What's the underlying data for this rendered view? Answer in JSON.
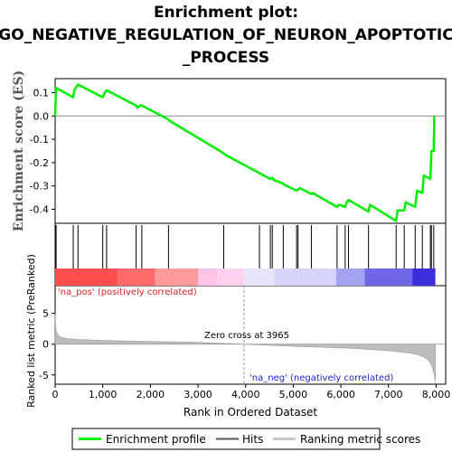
{
  "chart_data": {
    "type": "line",
    "title_lines": [
      "Enrichment plot:",
      "GO_NEGATIVE_REGULATION_OF_NEURON_APOPTOTIC",
      "_PROCESS"
    ],
    "es_panel": {
      "ylabel": "Enrichment score (ES)",
      "ylim": [
        -0.46,
        0.16
      ],
      "yticks": [
        0.1,
        0.0,
        -0.1,
        -0.2,
        -0.3,
        -0.4
      ],
      "ytick_labels": [
        "0.1",
        "0.0",
        "-0.1",
        "-0.2",
        "-0.3",
        "-0.4"
      ],
      "line_color": "#00ee00",
      "series": [
        {
          "name": "Enrichment profile",
          "x": [
            0,
            20,
            380,
            400,
            480,
            1000,
            1040,
            1080,
            1700,
            1730,
            1780,
            1820,
            2380,
            2400,
            3540,
            3560,
            4520,
            4560,
            4600,
            4790,
            4810,
            5070,
            5100,
            5150,
            5380,
            5410,
            5920,
            5960,
            6090,
            6120,
            6160,
            6580,
            6610,
            7160,
            7190,
            7330,
            7360,
            7560,
            7600,
            7710,
            7740,
            7880,
            7900,
            7950,
            7960
          ],
          "y": [
            0.0,
            0.12,
            0.08,
            0.11,
            0.135,
            0.08,
            0.1,
            0.11,
            0.045,
            0.035,
            0.045,
            0.045,
            -0.015,
            -0.02,
            -0.16,
            -0.165,
            -0.27,
            -0.265,
            -0.275,
            -0.29,
            -0.295,
            -0.32,
            -0.315,
            -0.31,
            -0.335,
            -0.33,
            -0.39,
            -0.38,
            -0.39,
            -0.37,
            -0.36,
            -0.41,
            -0.38,
            -0.45,
            -0.405,
            -0.405,
            -0.37,
            -0.39,
            -0.32,
            -0.33,
            -0.255,
            -0.27,
            -0.15,
            -0.15,
            0.0
          ]
        }
      ]
    },
    "hits": [
      20,
      380,
      480,
      1000,
      1080,
      1700,
      1820,
      2380,
      3540,
      4290,
      4520,
      4560,
      4790,
      5070,
      5100,
      5380,
      5920,
      6090,
      6160,
      6580,
      7160,
      7330,
      7560,
      7710,
      7880,
      7900,
      7950
    ],
    "rank_panel": {
      "ylabel": "Ranked list metric (PreRanked)",
      "ylim": [
        -6.5,
        9.5
      ],
      "yticks": [
        5,
        0,
        -5
      ],
      "ytick_labels": [
        "5",
        "0",
        "-5"
      ],
      "metric_profile": {
        "x": [
          0,
          5,
          20,
          60,
          120,
          250,
          500,
          1000,
          2000,
          3000,
          3965,
          5000,
          6000,
          6500,
          7000,
          7300,
          7500,
          7650,
          7750,
          7820,
          7870,
          7900,
          7930,
          7950,
          7965,
          7975,
          7984
        ],
        "y": [
          5.0,
          3.5,
          2.2,
          1.5,
          1.1,
          0.9,
          0.75,
          0.6,
          0.45,
          0.3,
          0.0,
          -0.35,
          -0.6,
          -0.8,
          -1.05,
          -1.3,
          -1.5,
          -1.8,
          -2.1,
          -2.5,
          -2.9,
          -3.4,
          -4.0,
          -4.6,
          -5.1,
          -5.8,
          -6.0
        ]
      },
      "annotations": {
        "pos": "'na_pos' (positively correlated)",
        "neg": "'na_neg' (negatively correlated)",
        "zero": "Zero cross at 3965"
      },
      "zero_cross": 3965
    },
    "xlabel": "Rank in Ordered Dataset",
    "xlim": [
      0,
      8200
    ],
    "xticks": [
      0,
      1000,
      2000,
      3000,
      4000,
      5000,
      6000,
      7000,
      8000
    ],
    "xtick_labels": [
      "0",
      "1,000",
      "2,000",
      "3,000",
      "4,000",
      "5,000",
      "6,000",
      "7,000",
      "8,000"
    ],
    "heat_bar": [
      {
        "x0": 0,
        "x1": 1300,
        "color": "#ff4e4e"
      },
      {
        "x0": 1300,
        "x1": 2100,
        "color": "#ff6a6a"
      },
      {
        "x0": 2100,
        "x1": 3000,
        "color": "#ff9a9a"
      },
      {
        "x0": 3000,
        "x1": 3400,
        "color": "#ffc3e5"
      },
      {
        "x0": 3400,
        "x1": 3965,
        "color": "#ffd0ee"
      },
      {
        "x0": 3965,
        "x1": 4600,
        "color": "#e8e4fa"
      },
      {
        "x0": 4600,
        "x1": 5900,
        "color": "#d6d4f8"
      },
      {
        "x0": 5900,
        "x1": 6500,
        "color": "#a7a2f0"
      },
      {
        "x0": 6500,
        "x1": 7500,
        "color": "#7066e6"
      },
      {
        "x0": 7500,
        "x1": 7984,
        "color": "#3b2fdb"
      }
    ],
    "legend": [
      {
        "label": "Enrichment profile",
        "color": "#00ee00"
      },
      {
        "label": "Hits",
        "color": "#000000"
      },
      {
        "label": "Ranking metric scores",
        "color": "#c8c8c8"
      }
    ]
  }
}
